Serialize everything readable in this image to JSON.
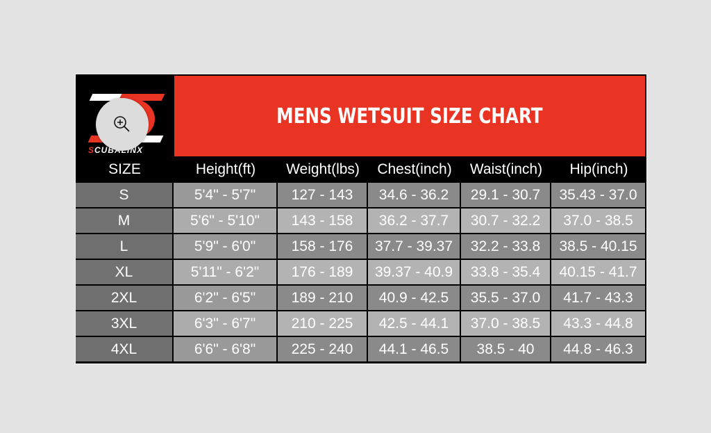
{
  "title": "MENS WETSUIT SIZE CHART",
  "logo_text": "SCUBALINX",
  "icons": {
    "zoom": "zoom-in-icon"
  },
  "colors": {
    "title_band": "#e93323",
    "header": "#000000"
  },
  "chart_data": {
    "type": "table",
    "columns": [
      "SIZE",
      "Height(ft)",
      "Weight(lbs)",
      "Chest(inch)",
      "Waist(inch)",
      "Hip(inch)"
    ],
    "rows": [
      [
        "S",
        "5'4\" - 5'7\"",
        "127 - 143",
        "34.6 - 36.2",
        "29.1 - 30.7",
        "35.43 - 37.0"
      ],
      [
        "M",
        "5'6\" - 5'10\"",
        "143 - 158",
        "36.2 - 37.7",
        "30.7 - 32.2",
        "37.0 - 38.5"
      ],
      [
        "L",
        "5'9\" - 6'0\"",
        "158 - 176",
        "37.7 - 39.37",
        "32.2 - 33.8",
        "38.5 - 40.15"
      ],
      [
        "XL",
        "5'11\" - 6'2\"",
        "176 - 189",
        "39.37 - 40.9",
        "33.8 - 35.4",
        "40.15 - 41.7"
      ],
      [
        "2XL",
        "6'2\" - 6'5\"",
        "189 - 210",
        "40.9 - 42.5",
        "35.5 - 37.0",
        "41.7 - 43.3"
      ],
      [
        "3XL",
        "6'3\" - 6'7\"",
        "210 - 225",
        "42.5 - 44.1",
        "37.0 - 38.5",
        "43.3 - 44.8"
      ],
      [
        "4XL",
        "6'6\" - 6'8\"",
        "225 - 240",
        "44.1 - 46.5",
        "38.5 - 40",
        "44.8 - 46.3"
      ]
    ]
  }
}
